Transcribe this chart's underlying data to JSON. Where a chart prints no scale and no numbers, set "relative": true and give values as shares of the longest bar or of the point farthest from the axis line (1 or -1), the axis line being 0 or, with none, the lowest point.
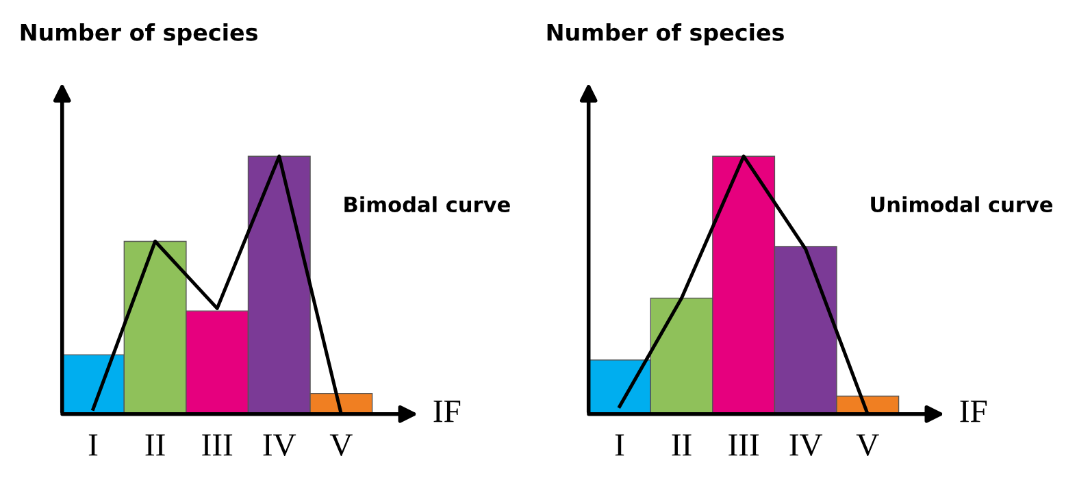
{
  "chart_data": [
    {
      "type": "bar",
      "relative": true,
      "ylabel": "Number of species",
      "xlabel": "IF",
      "categories": [
        "I",
        "II",
        "III",
        "IV",
        "V"
      ],
      "annotations": [
        "Bimodal curve"
      ],
      "grid": false,
      "legend": false,
      "series": [
        {
          "colors": [
            "#00aeef",
            "#8fc15a",
            "#e6007e",
            "#7b3a96",
            "#f07f22"
          ],
          "values": [
            0.23,
            0.67,
            0.4,
            1.0,
            0.08
          ]
        },
        {
          "type": "line",
          "color": "#000000",
          "values": [
            0.02,
            0.67,
            0.41,
            1.0,
            0.0
          ]
        }
      ]
    },
    {
      "type": "bar",
      "relative": true,
      "ylabel": "Number of species",
      "xlabel": "IF",
      "categories": [
        "I",
        "II",
        "III",
        "IV",
        "V"
      ],
      "annotations": [
        "Unimodal curve"
      ],
      "grid": false,
      "legend": false,
      "series": [
        {
          "colors": [
            "#00aeef",
            "#8fc15a",
            "#e6007e",
            "#7b3a96",
            "#f07f22"
          ],
          "values": [
            0.21,
            0.45,
            1.0,
            0.65,
            0.07
          ]
        },
        {
          "type": "line",
          "color": "#000000",
          "values": [
            0.03,
            0.45,
            1.0,
            0.64,
            0.0
          ]
        }
      ]
    }
  ]
}
